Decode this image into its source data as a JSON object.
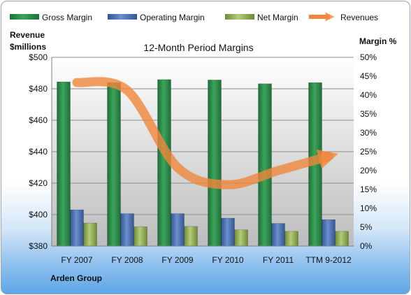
{
  "chart_data": {
    "type": "bar",
    "title": "12-Month Period Margins",
    "company": "Arden Group",
    "y_left_label": [
      "Revenue",
      "$millions"
    ],
    "y_right_label": "Margin %",
    "categories": [
      "FY 2007",
      "FY 2008",
      "FY 2009",
      "FY 2010",
      "FY 2011",
      "TTM 9-2012"
    ],
    "y_left_ticks": [
      "$380",
      "$400",
      "$420",
      "$440",
      "$460",
      "$480",
      "$500"
    ],
    "y_left_lim": [
      380,
      500
    ],
    "y_right_ticks": [
      "0%",
      "5%",
      "10%",
      "15%",
      "20%",
      "25%",
      "30%",
      "35%",
      "40%",
      "45%",
      "50%"
    ],
    "y_right_lim": [
      0,
      50
    ],
    "legend_position": "top",
    "series": [
      {
        "name": "Gross Margin",
        "axis": "right",
        "kind": "bar",
        "color": "#2e8b4a",
        "values": [
          43.5,
          43.3,
          44.1,
          44.0,
          43.0,
          43.3
        ]
      },
      {
        "name": "Operating Margin",
        "axis": "right",
        "kind": "bar",
        "color": "#4a6fb0",
        "values": [
          9.6,
          8.6,
          8.6,
          7.4,
          6.0,
          7.0
        ]
      },
      {
        "name": "Net Margin",
        "axis": "right",
        "kind": "bar",
        "color": "#96b45a",
        "values": [
          6.1,
          5.1,
          5.2,
          4.3,
          3.9,
          3.9
        ]
      },
      {
        "name": "Revenues",
        "axis": "left",
        "kind": "line",
        "color": "#f0873c",
        "values": [
          484,
          479,
          430,
          419,
          428,
          437
        ]
      }
    ],
    "grid": true
  }
}
